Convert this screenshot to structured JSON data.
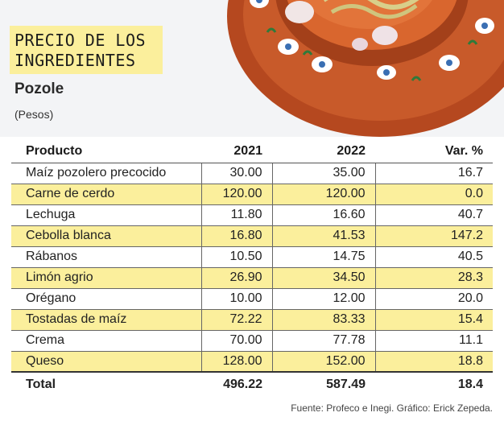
{
  "header": {
    "title_line1": "PRECIO DE LOS",
    "title_line2": "INGREDIENTES",
    "subtitle": "Pozole",
    "units": "(Pesos)"
  },
  "table": {
    "columns": [
      "Producto",
      "2021",
      "2022",
      "Var. %"
    ],
    "rows": [
      {
        "product": "Maíz pozolero precocido",
        "y2021": "30.00",
        "y2022": "35.00",
        "var": "16.7"
      },
      {
        "product": "Carne de cerdo",
        "y2021": "120.00",
        "y2022": "120.00",
        "var": "0.0"
      },
      {
        "product": "Lechuga",
        "y2021": "11.80",
        "y2022": "16.60",
        "var": "40.7"
      },
      {
        "product": "Cebolla blanca",
        "y2021": "16.80",
        "y2022": "41.53",
        "var": "147.2"
      },
      {
        "product": "Rábanos",
        "y2021": "10.50",
        "y2022": "14.75",
        "var": "40.5"
      },
      {
        "product": "Limón agrio",
        "y2021": "26.90",
        "y2022": "34.50",
        "var": "28.3"
      },
      {
        "product": "Orégano",
        "y2021": "10.00",
        "y2022": "12.00",
        "var": "20.0"
      },
      {
        "product": "Tostadas de maíz",
        "y2021": "72.22",
        "y2022": "83.33",
        "var": "15.4"
      },
      {
        "product": "Crema",
        "y2021": "70.00",
        "y2022": "77.78",
        "var": "11.1"
      },
      {
        "product": "Queso",
        "y2021": "128.00",
        "y2022": "152.00",
        "var": "18.8"
      }
    ],
    "total": {
      "product": "Total",
      "y2021": "496.22",
      "y2022": "587.49",
      "var": "18.4"
    }
  },
  "source": "Fuente: Profeco e Inegi. Gráfico: Erick Zepeda.",
  "colors": {
    "highlight": "#fbef9c",
    "bowl": "#c0522a",
    "background": "#f3f4f6"
  },
  "icons": {
    "illustration": "pozole-bowl-illustration"
  }
}
